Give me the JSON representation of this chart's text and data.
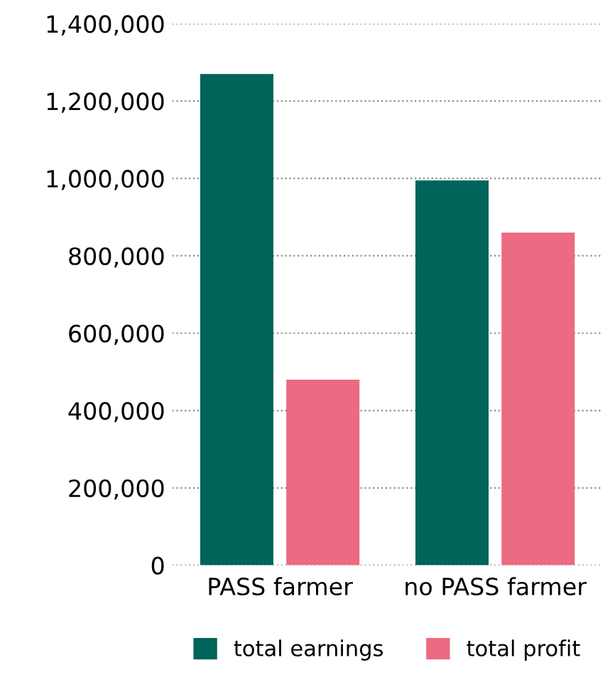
{
  "chart_data": {
    "type": "bar",
    "categories": [
      "PASS farmer",
      "no PASS farmer"
    ],
    "series": [
      {
        "name": "total earnings",
        "color": "#00645a",
        "values": [
          1270000,
          995000
        ]
      },
      {
        "name": "total profit",
        "color": "#ec6a82",
        "values": [
          480000,
          860000
        ]
      }
    ],
    "ylim": [
      0,
      1400000
    ],
    "yticks": [
      {
        "value": 0,
        "label": "0"
      },
      {
        "value": 200000,
        "label": "200,000"
      },
      {
        "value": 400000,
        "label": "400,000"
      },
      {
        "value": 600000,
        "label": "600,000"
      },
      {
        "value": 800000,
        "label": "800,000"
      },
      {
        "value": 1000000,
        "label": "1,000,000"
      },
      {
        "value": 1200000,
        "label": "1,200,000"
      },
      {
        "value": 1400000,
        "label": "1,400,000"
      }
    ],
    "grid": "y",
    "legend": "bottom"
  }
}
